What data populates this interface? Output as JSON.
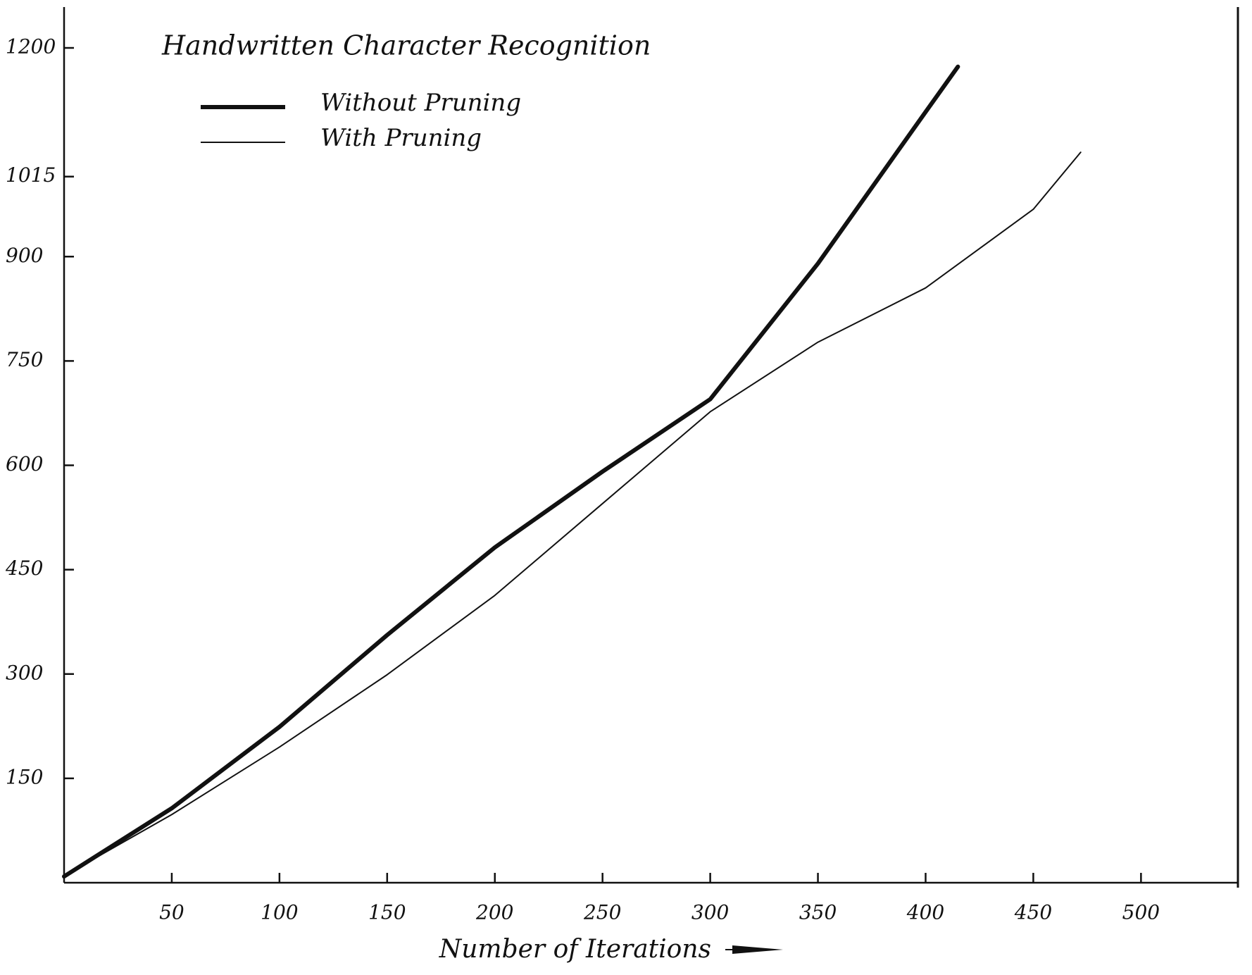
{
  "chart_data": {
    "type": "line",
    "title": "Handwritten Character Recognition",
    "x_label": "Number of Iterations",
    "xlim": [
      0,
      545
    ],
    "ylim": [
      0,
      1200
    ],
    "xticks": [
      50,
      100,
      150,
      200,
      250,
      300,
      350,
      400,
      450,
      500
    ],
    "yticks": [
      150,
      300,
      450,
      600,
      750,
      900,
      1015,
      1200
    ],
    "series": [
      {
        "name": "Without Pruning",
        "color": "#111111",
        "width": 6,
        "x": [
          0,
          50,
          100,
          150,
          200,
          250,
          300,
          350,
          400,
          415
        ],
        "values": [
          9,
          107,
          224,
          356,
          482,
          591,
          695,
          890,
          1108,
          1173
        ]
      },
      {
        "name": "With Pruning",
        "color": "#111111",
        "width": 2,
        "x": [
          0,
          50,
          100,
          150,
          200,
          250,
          300,
          350,
          400,
          450,
          472
        ],
        "values": [
          10,
          98,
          195,
          299,
          413,
          545,
          677,
          777,
          855,
          968,
          1050
        ]
      }
    ]
  }
}
